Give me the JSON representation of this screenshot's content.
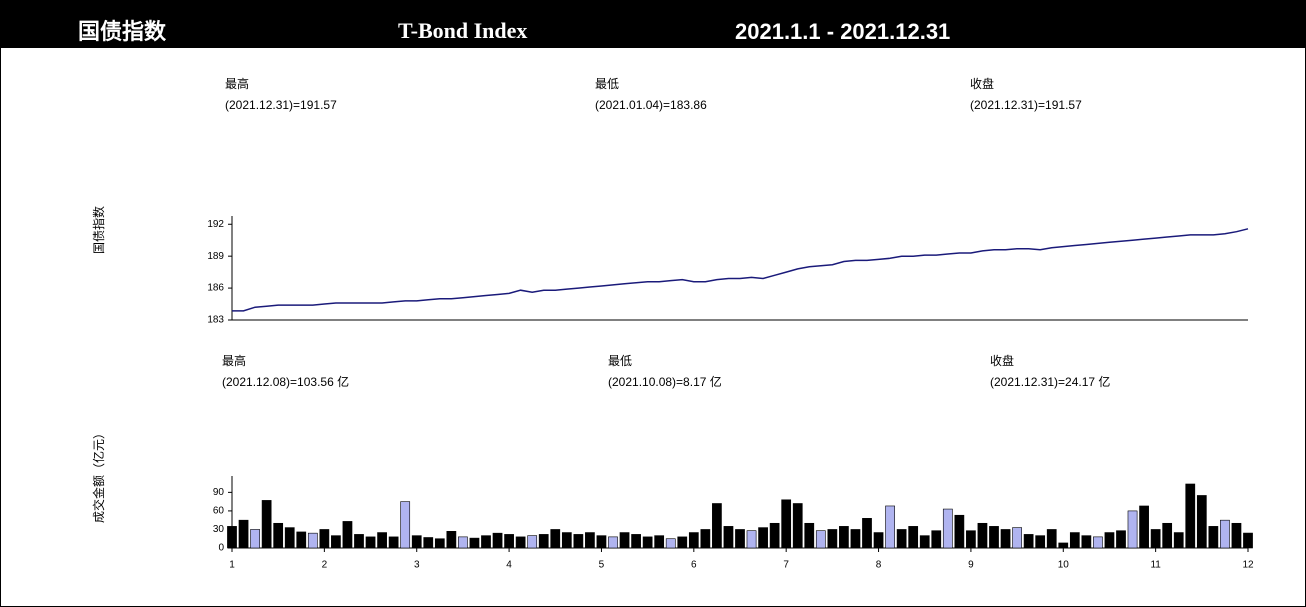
{
  "header": {
    "title_cn": "国债指数",
    "title_en": "T-Bond Index",
    "period": "2021.1.1 - 2021.12.31"
  },
  "chart_data": [
    {
      "type": "line",
      "ylabel": "国债指数",
      "color": "#1a1a7a",
      "stats": [
        {
          "label": "最高",
          "text": "(2021.12.31)=191.57"
        },
        {
          "label": "最低",
          "text": "(2021.01.04)=183.86"
        },
        {
          "label": "收盘",
          "text": "(2021.12.31)=191.57"
        }
      ],
      "x": [
        1,
        1.125,
        1.25,
        1.375,
        1.5,
        1.625,
        1.75,
        1.875,
        2,
        2.125,
        2.25,
        2.375,
        2.5,
        2.625,
        2.75,
        2.875,
        3,
        3.125,
        3.25,
        3.375,
        3.5,
        3.625,
        3.75,
        3.875,
        4,
        4.125,
        4.25,
        4.375,
        4.5,
        4.625,
        4.75,
        4.875,
        5,
        5.125,
        5.25,
        5.375,
        5.5,
        5.625,
        5.75,
        5.875,
        6,
        6.125,
        6.25,
        6.375,
        6.5,
        6.625,
        6.75,
        6.875,
        7,
        7.125,
        7.25,
        7.375,
        7.5,
        7.625,
        7.75,
        7.875,
        8,
        8.125,
        8.25,
        8.375,
        8.5,
        8.625,
        8.75,
        8.875,
        9,
        9.125,
        9.25,
        9.375,
        9.5,
        9.625,
        9.75,
        9.875,
        10,
        10.125,
        10.25,
        10.375,
        10.5,
        10.625,
        10.75,
        10.875,
        11,
        11.125,
        11.25,
        11.375,
        11.5,
        11.625,
        11.75,
        11.875,
        12
      ],
      "values": [
        183.86,
        183.86,
        184.2,
        184.3,
        184.4,
        184.4,
        184.4,
        184.4,
        184.5,
        184.6,
        184.6,
        184.6,
        184.6,
        184.6,
        184.7,
        184.8,
        184.8,
        184.9,
        185.0,
        185.0,
        185.1,
        185.2,
        185.3,
        185.4,
        185.5,
        185.8,
        185.6,
        185.8,
        185.8,
        185.9,
        186.0,
        186.1,
        186.2,
        186.3,
        186.4,
        186.5,
        186.6,
        186.6,
        186.7,
        186.8,
        186.6,
        186.6,
        186.8,
        186.9,
        186.9,
        187.0,
        186.9,
        187.2,
        187.5,
        187.8,
        188.0,
        188.1,
        188.2,
        188.5,
        188.6,
        188.6,
        188.7,
        188.8,
        189.0,
        189.0,
        189.1,
        189.1,
        189.2,
        189.3,
        189.3,
        189.5,
        189.6,
        189.6,
        189.7,
        189.7,
        189.6,
        189.8,
        189.9,
        190.0,
        190.1,
        190.2,
        190.3,
        190.4,
        190.5,
        190.6,
        190.7,
        190.8,
        190.9,
        191.0,
        191.0,
        191.0,
        191.1,
        191.3,
        191.57
      ],
      "xlim": [
        1,
        12
      ],
      "ylim": [
        183,
        192.4
      ],
      "yticks": [
        183,
        186,
        189,
        192
      ]
    },
    {
      "type": "bar",
      "ylabel": "成交金额（亿元）",
      "color": "#000000",
      "stats": [
        {
          "label": "最高",
          "text": "(2021.12.08)=103.56 亿"
        },
        {
          "label": "最低",
          "text": "(2021.10.08)=8.17 亿"
        },
        {
          "label": "收盘",
          "text": "(2021.12.31)=24.17 亿"
        }
      ],
      "x": [
        1,
        1.125,
        1.25,
        1.375,
        1.5,
        1.625,
        1.75,
        1.875,
        2,
        2.125,
        2.25,
        2.375,
        2.5,
        2.625,
        2.75,
        2.875,
        3,
        3.125,
        3.25,
        3.375,
        3.5,
        3.625,
        3.75,
        3.875,
        4,
        4.125,
        4.25,
        4.375,
        4.5,
        4.625,
        4.75,
        4.875,
        5,
        5.125,
        5.25,
        5.375,
        5.5,
        5.625,
        5.75,
        5.875,
        6,
        6.125,
        6.25,
        6.375,
        6.5,
        6.625,
        6.75,
        6.875,
        7,
        7.125,
        7.25,
        7.375,
        7.5,
        7.625,
        7.75,
        7.875,
        8,
        8.125,
        8.25,
        8.375,
        8.5,
        8.625,
        8.75,
        8.875,
        9,
        9.125,
        9.25,
        9.375,
        9.5,
        9.625,
        9.75,
        9.875,
        10,
        10.125,
        10.25,
        10.375,
        10.5,
        10.625,
        10.75,
        10.875,
        11,
        11.125,
        11.25,
        11.375,
        11.5,
        11.625,
        11.75,
        11.875,
        12
      ],
      "values": [
        35,
        45,
        30,
        77,
        40,
        33,
        26,
        24,
        30,
        20,
        43,
        22,
        18,
        25,
        18,
        75,
        20,
        17,
        15,
        27,
        18,
        16,
        20,
        24,
        22,
        18,
        20,
        22,
        30,
        25,
        22,
        25,
        20,
        18,
        25,
        22,
        18,
        20,
        15,
        18,
        25,
        30,
        72,
        35,
        30,
        28,
        33,
        40,
        78,
        72,
        40,
        28,
        30,
        35,
        30,
        48,
        25,
        68,
        30,
        35,
        20,
        28,
        63,
        53,
        28,
        40,
        35,
        30,
        33,
        22,
        20,
        30,
        8.17,
        25,
        20,
        18,
        25,
        28,
        60,
        68,
        30,
        40,
        25,
        103.56,
        85,
        35,
        45,
        40,
        24.17
      ],
      "alt_color": "#b0b4f0",
      "alt_bars": [
        2,
        7,
        15,
        20,
        26,
        33,
        38,
        45,
        51,
        57,
        62,
        68,
        75,
        78,
        86
      ],
      "xlim": [
        1,
        12
      ],
      "xticks": [
        1,
        2,
        3,
        4,
        5,
        6,
        7,
        8,
        9,
        10,
        11,
        12
      ],
      "ylim": [
        0,
        110
      ],
      "yticks": [
        0,
        30,
        60,
        90
      ]
    }
  ]
}
